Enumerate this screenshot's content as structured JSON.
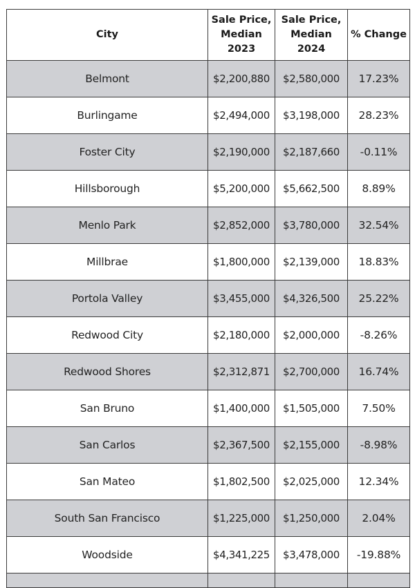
{
  "table": {
    "headers": {
      "city": "City",
      "price_2023": [
        "Sale Price,",
        "Median",
        "2023"
      ],
      "price_2024": [
        "Sale Price,",
        "Median",
        "2024"
      ],
      "change": "% Change"
    },
    "rows": [
      {
        "city": "Belmont",
        "price_2023": "$2,200,880",
        "price_2024": "$2,580,000",
        "change": "17.23%"
      },
      {
        "city": "Burlingame",
        "price_2023": "$2,494,000",
        "price_2024": "$3,198,000",
        "change": "28.23%"
      },
      {
        "city": "Foster City",
        "price_2023": "$2,190,000",
        "price_2024": "$2,187,660",
        "change": "-0.11%"
      },
      {
        "city": "Hillsborough",
        "price_2023": "$5,200,000",
        "price_2024": "$5,662,500",
        "change": "8.89%"
      },
      {
        "city": "Menlo Park",
        "price_2023": "$2,852,000",
        "price_2024": "$3,780,000",
        "change": "32.54%"
      },
      {
        "city": "Millbrae",
        "price_2023": "$1,800,000",
        "price_2024": "$2,139,000",
        "change": "18.83%"
      },
      {
        "city": "Portola Valley",
        "price_2023": "$3,455,000",
        "price_2024": "$4,326,500",
        "change": "25.22%"
      },
      {
        "city": "Redwood City",
        "price_2023": "$2,180,000",
        "price_2024": "$2,000,000",
        "change": "-8.26%"
      },
      {
        "city": "Redwood Shores",
        "price_2023": "$2,312,871",
        "price_2024": "$2,700,000",
        "change": "16.74%"
      },
      {
        "city": "San Bruno",
        "price_2023": "$1,400,000",
        "price_2024": "$1,505,000",
        "change": "7.50%"
      },
      {
        "city": "San Carlos",
        "price_2023": "$2,367,500",
        "price_2024": "$2,155,000",
        "change": "-8.98%"
      },
      {
        "city": "San Mateo",
        "price_2023": "$1,802,500",
        "price_2024": "$2,025,000",
        "change": "12.34%"
      },
      {
        "city": "South San Francisco",
        "price_2023": "$1,225,000",
        "price_2024": "$1,250,000",
        "change": "2.04%"
      },
      {
        "city": "Woodside",
        "price_2023": "$4,341,225",
        "price_2024": "$3,478,000",
        "change": "-19.88%"
      }
    ]
  },
  "colors": {
    "shaded_row": "#cfd0d4",
    "plain_row": "#ffffff",
    "border": "#3a3a3a"
  }
}
